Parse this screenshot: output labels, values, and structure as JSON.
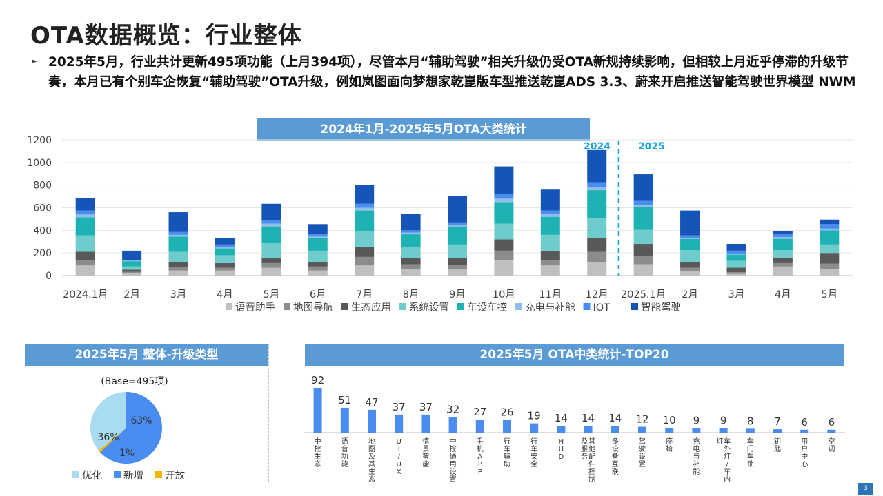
{
  "page": {
    "title": "OTA数据概览：行业整体",
    "summary": "2025年5月，行业共计更新495项功能（上月394项），尽管本月“辅助驾驶”相关升级仍受OTA新规持续影响，但相较上月近乎停滞的升级节奏，本月已有个别车企恢复“辅助驾驶”OTA升级，例如岚图面向梦想家乾崑版车型推送乾崑ADS 3.3、蔚来开启推送智能驾驶世界模型 NWM",
    "bullet_icon": "triangle-bullet-icon",
    "page_number": "3"
  },
  "chart_data": [
    {
      "type": "bar",
      "stacked": true,
      "title": "2024年1月-2025年5月OTA大类统计",
      "categories": [
        "2024.1月",
        "2月",
        "3月",
        "4月",
        "5月",
        "6月",
        "7月",
        "8月",
        "9月",
        "10月",
        "11月",
        "12月",
        "2025.1月",
        "2月",
        "3月",
        "4月",
        "5月"
      ],
      "ylim": [
        0,
        1200
      ],
      "yticks": [
        0,
        200,
        400,
        600,
        800,
        1000,
        1200
      ],
      "grid": true,
      "legend_position": "bottom",
      "year_divider": {
        "left_label": "2024",
        "right_label": "2025",
        "after_index": 11
      },
      "series": [
        {
          "name": "语音助手",
          "color": "#bfbfbf",
          "values": [
            90,
            20,
            45,
            45,
            70,
            45,
            90,
            55,
            55,
            140,
            90,
            120,
            100,
            40,
            15,
            80,
            55
          ]
        },
        {
          "name": "地图导航",
          "color": "#8c8c8c",
          "values": [
            45,
            12,
            30,
            25,
            40,
            35,
            75,
            45,
            40,
            80,
            50,
            90,
            70,
            30,
            15,
            30,
            50
          ]
        },
        {
          "name": "生态应用",
          "color": "#595959",
          "values": [
            75,
            20,
            45,
            40,
            45,
            40,
            90,
            55,
            60,
            100,
            80,
            120,
            110,
            50,
            40,
            50,
            95
          ]
        },
        {
          "name": "系统设置",
          "color": "#6fcccc",
          "values": [
            145,
            30,
            90,
            70,
            130,
            100,
            135,
            100,
            120,
            140,
            140,
            180,
            125,
            105,
            60,
            65,
            75
          ]
        },
        {
          "name": "车设车控",
          "color": "#1fb2b2",
          "values": [
            160,
            45,
            135,
            60,
            150,
            110,
            185,
            110,
            160,
            190,
            160,
            245,
            200,
            100,
            55,
            100,
            125
          ]
        },
        {
          "name": "充电与补能",
          "color": "#8fbfe8",
          "values": [
            25,
            5,
            15,
            15,
            25,
            15,
            25,
            15,
            15,
            30,
            25,
            30,
            20,
            10,
            10,
            15,
            15
          ]
        },
        {
          "name": "IOT",
          "color": "#4a8df0",
          "values": [
            35,
            8,
            25,
            20,
            30,
            20,
            35,
            20,
            20,
            40,
            30,
            40,
            35,
            20,
            25,
            25,
            40
          ]
        },
        {
          "name": "智能驾驶",
          "color": "#1555b8",
          "values": [
            110,
            80,
            175,
            60,
            145,
            90,
            165,
            145,
            235,
            245,
            185,
            285,
            235,
            220,
            60,
            30,
            40
          ]
        }
      ]
    },
    {
      "type": "pie",
      "title": "2025年5月 整体-升级类型",
      "base_label": "(Base=495项)",
      "slices": [
        {
          "name": "优化",
          "value": 36,
          "label": "36%",
          "color": "#a9dcf2"
        },
        {
          "name": "新增",
          "value": 63,
          "label": "63%",
          "color": "#4a8df0"
        },
        {
          "name": "开放",
          "value": 1,
          "label": "1%",
          "color": "#f5b400"
        }
      ],
      "legend_position": "bottom"
    },
    {
      "type": "bar",
      "title": "2025年5月 OTA中类统计-TOP20",
      "categories": [
        "中控生态",
        "语音功能",
        "地图及其生态",
        "UI/UX",
        "情景智能",
        "中控通用设置",
        "手机APP",
        "行车辅助",
        "行车安全",
        "HUD",
        "其他配件控制及服务",
        "多设备互联",
        "驾驶设置",
        "座椅",
        "充电与补能",
        "车外灯/车内灯",
        "车门车锁",
        "钥匙",
        "用户中心",
        "空调"
      ],
      "values": [
        92,
        51,
        47,
        37,
        37,
        32,
        27,
        26,
        19,
        14,
        14,
        14,
        12,
        10,
        9,
        9,
        8,
        7,
        6,
        6
      ],
      "color": "#4a8df0",
      "ylim": [
        0,
        100
      ]
    }
  ]
}
